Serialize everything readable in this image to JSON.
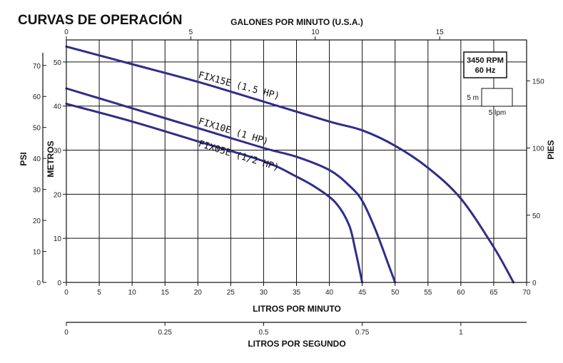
{
  "chart_data": {
    "type": "line",
    "title": "CURVAS DE OPERACIÓN",
    "xlabel": "LITROS POR MINUTO",
    "xlim": [
      0,
      70
    ],
    "x_ticks": [
      0,
      5,
      10,
      15,
      20,
      25,
      30,
      35,
      40,
      45,
      50,
      55,
      60,
      65,
      70
    ],
    "x_tick_labels": [
      "0",
      "5",
      "10",
      "15",
      "20",
      "25",
      "30",
      "35",
      "40",
      "45",
      "50",
      "55",
      "60",
      "65",
      "70"
    ],
    "x2label": "GALONES POR MINUTO (U.S.A.)",
    "x2_ticks": [
      0,
      5,
      10,
      15
    ],
    "x2_tick_labels": [
      "0",
      "5",
      "10",
      "15"
    ],
    "x3label": "LITROS POR SEGUNDO",
    "x3_ticks": [
      0,
      0.25,
      0.5,
      0.75,
      1
    ],
    "x3_tick_labels": [
      "0",
      "0.25",
      "0.5",
      "0.75",
      "1"
    ],
    "ylabel": "METROS",
    "ylim": [
      0,
      55
    ],
    "y_ticks": [
      0,
      10,
      20,
      30,
      40,
      50
    ],
    "y_tick_labels": [
      "0",
      "10",
      "20",
      "30",
      "40",
      "50"
    ],
    "y2label": "PSI",
    "y2_ticks": [
      0,
      10,
      20,
      30,
      40,
      50,
      60,
      70
    ],
    "y2_tick_labels": [
      "0",
      "10",
      "20",
      "30",
      "40",
      "50",
      "60",
      "70"
    ],
    "y3label": "PIES",
    "y3_ticks": [
      0,
      50,
      100,
      150
    ],
    "y3_tick_labels": [
      "0",
      "50",
      "100",
      "150"
    ],
    "grid": true,
    "series": [
      {
        "name": "FIX15E (1.5 HP)",
        "x": [
          0,
          10,
          20,
          30,
          40,
          45,
          50,
          55,
          60,
          65,
          68
        ],
        "y": [
          53.5,
          49.5,
          45.5,
          41,
          36.5,
          34.5,
          31,
          26,
          19,
          8,
          0
        ]
      },
      {
        "name": "FIX10E (1 HP)",
        "x": [
          0,
          10,
          20,
          30,
          35,
          40,
          43,
          45,
          47,
          49,
          50
        ],
        "y": [
          44,
          39.5,
          35,
          30.5,
          28.5,
          25.5,
          22,
          18.5,
          12,
          4,
          0
        ]
      },
      {
        "name": "FIX05E (1/2 HP)",
        "x": [
          0,
          10,
          20,
          30,
          35,
          38,
          41,
          43,
          44,
          45
        ],
        "y": [
          40.5,
          36.5,
          32,
          27.5,
          24,
          21.5,
          18,
          13,
          7,
          0
        ]
      }
    ],
    "legend_box": {
      "lines": [
        "3450 RPM",
        "60 Hz"
      ],
      "scale_vertical": "5 m",
      "scale_horizontal": "5 lpm"
    },
    "colors": {
      "curve": "#2e2e8a",
      "grid": "#111111"
    }
  }
}
